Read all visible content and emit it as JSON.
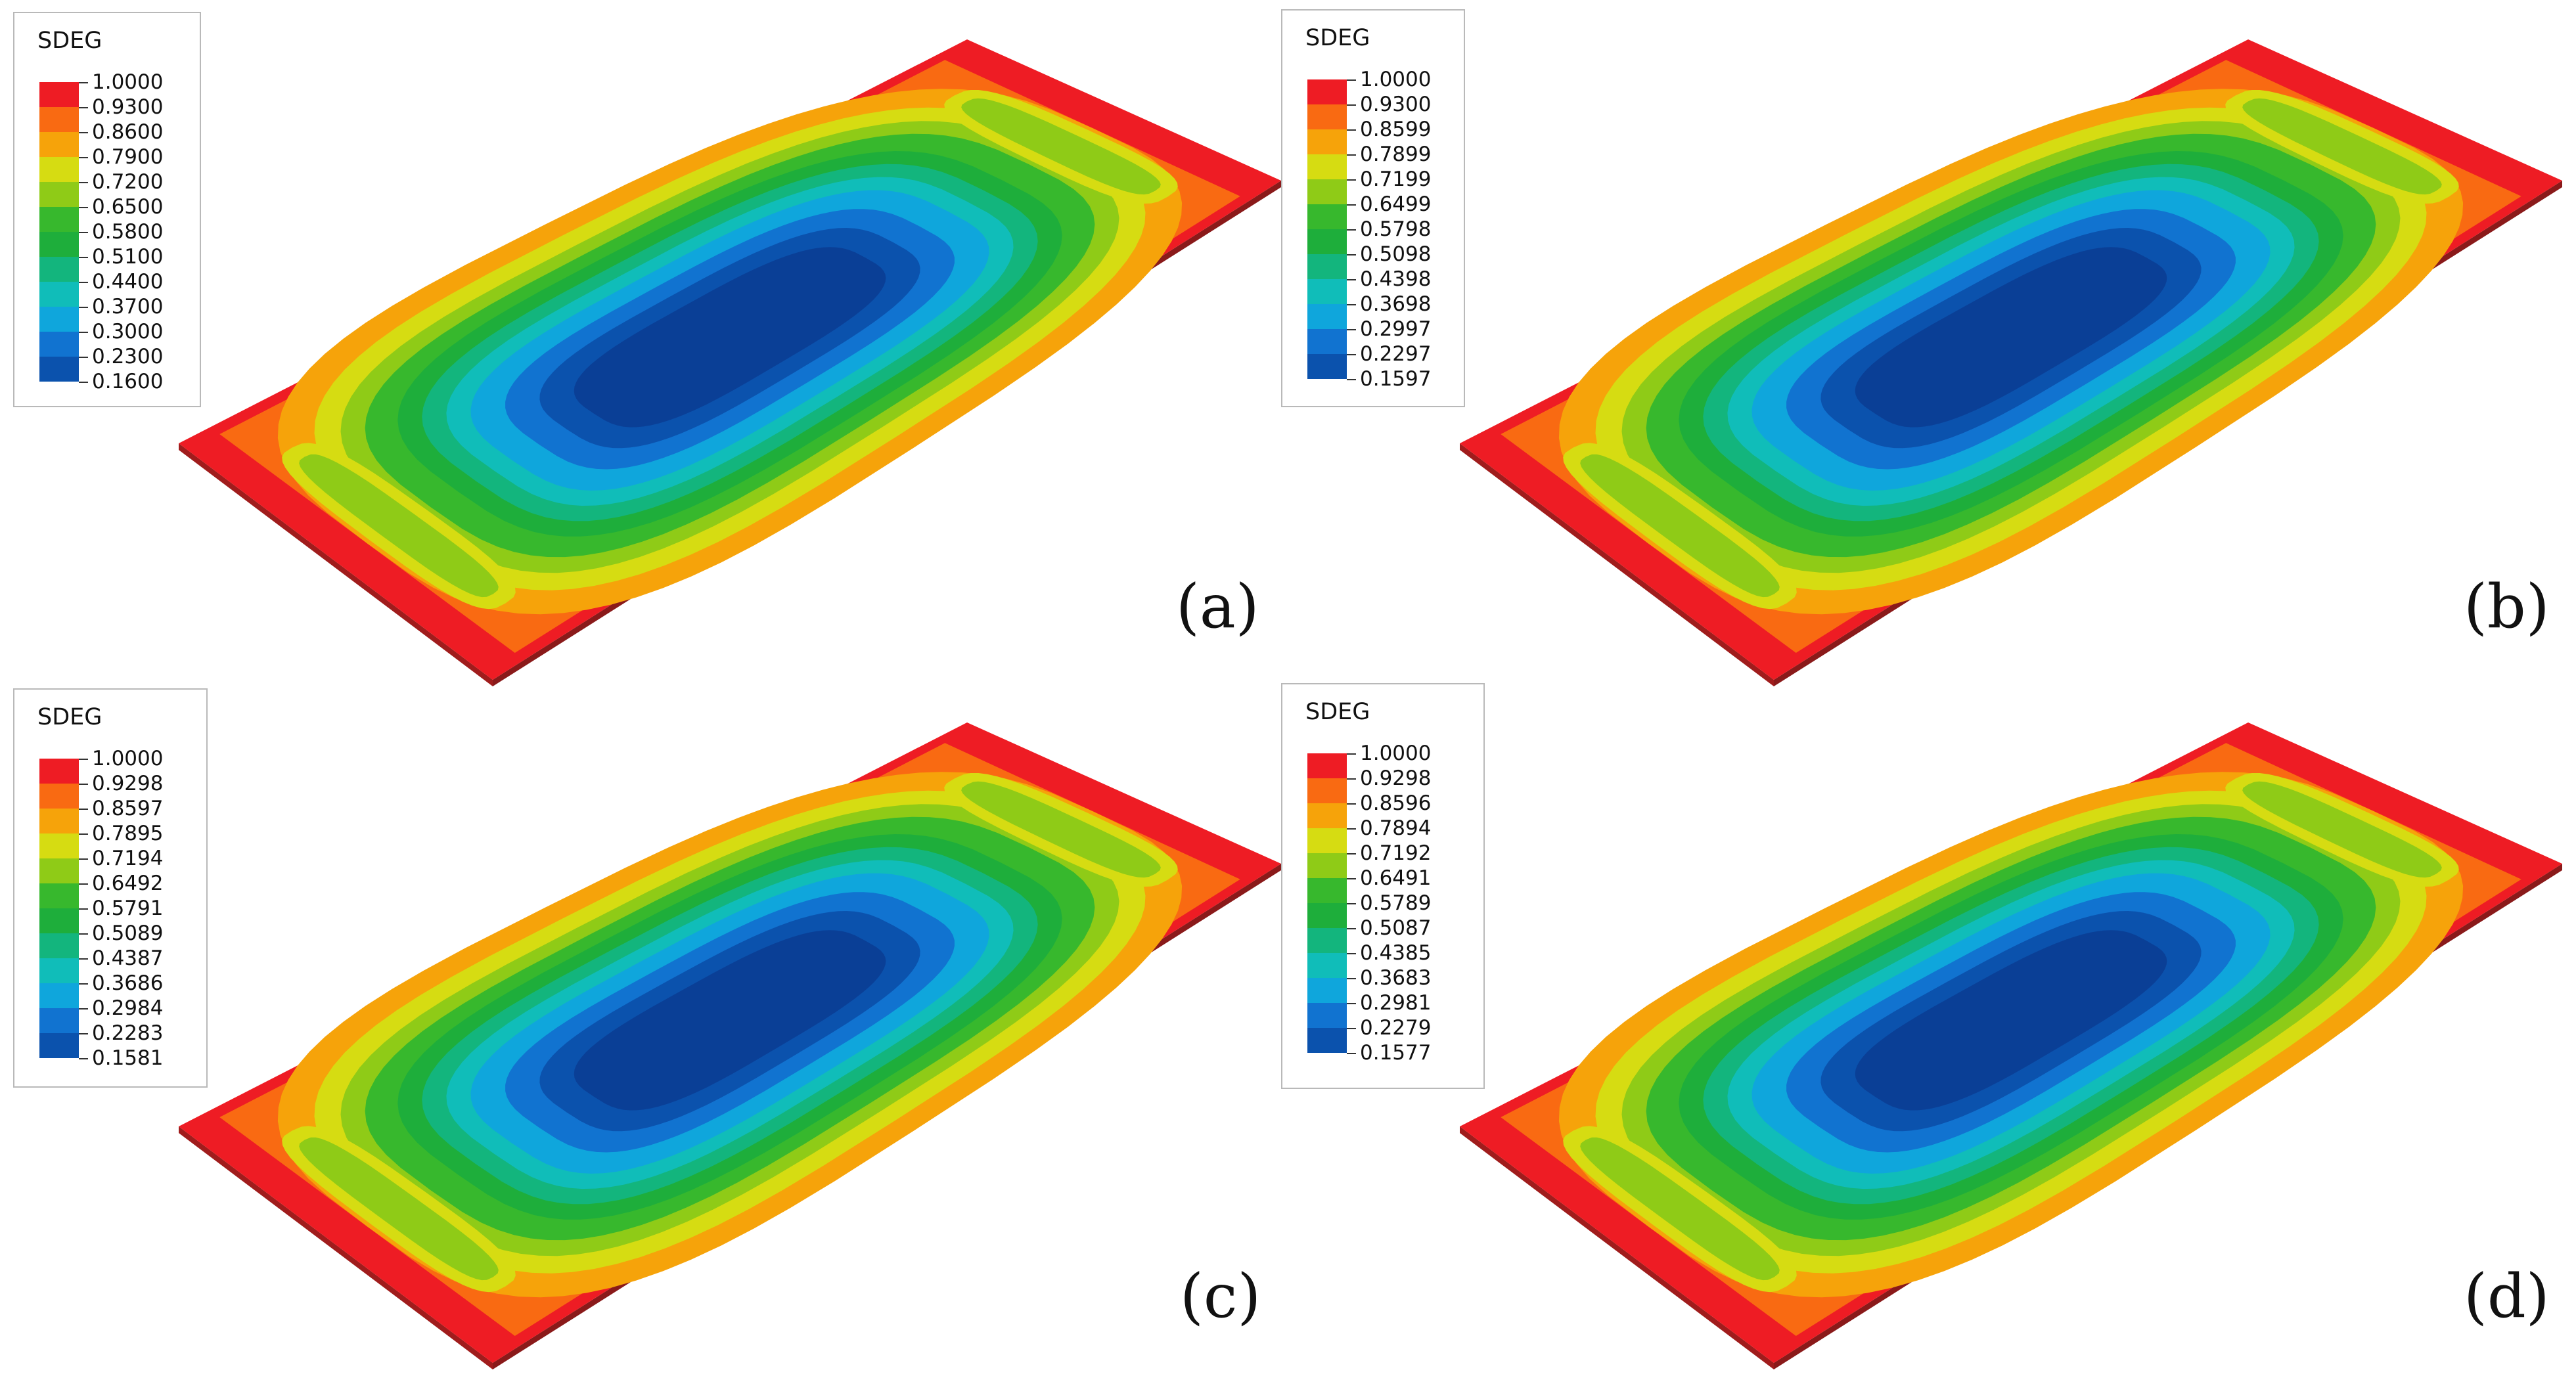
{
  "figure": {
    "panels": [
      {
        "id": "a",
        "label": "(a)",
        "legend_title": "SDEG",
        "legend_values": [
          "1.0000",
          "0.9300",
          "0.8600",
          "0.7900",
          "0.7200",
          "0.6500",
          "0.5800",
          "0.5100",
          "0.4400",
          "0.3700",
          "0.3000",
          "0.2300",
          "0.1600"
        ]
      },
      {
        "id": "b",
        "label": "(b)",
        "legend_title": "SDEG",
        "legend_values": [
          "1.0000",
          "0.9300",
          "0.8599",
          "0.7899",
          "0.7199",
          "0.6499",
          "0.5798",
          "0.5098",
          "0.4398",
          "0.3698",
          "0.2997",
          "0.2297",
          "0.1597"
        ]
      },
      {
        "id": "c",
        "label": "(c)",
        "legend_title": "SDEG",
        "legend_values": [
          "1.0000",
          "0.9298",
          "0.8597",
          "0.7895",
          "0.7194",
          "0.6492",
          "0.5791",
          "0.5089",
          "0.4387",
          "0.3686",
          "0.2984",
          "0.2283",
          "0.1581"
        ]
      },
      {
        "id": "d",
        "label": "(d)",
        "legend_title": "SDEG",
        "legend_values": [
          "1.0000",
          "0.9298",
          "0.8596",
          "0.7894",
          "0.7192",
          "0.6491",
          "0.5789",
          "0.5087",
          "0.4385",
          "0.3683",
          "0.2981",
          "0.2279",
          "0.1577"
        ]
      }
    ],
    "colormap": [
      "#ee1c24",
      "#f96a12",
      "#f6a30a",
      "#d6dc12",
      "#8fcb17",
      "#37b82d",
      "#1eae3b",
      "#13b57d",
      "#10bdb9",
      "#0fa6dc",
      "#1173d0",
      "#0b52ad",
      "#0a3f96"
    ]
  }
}
